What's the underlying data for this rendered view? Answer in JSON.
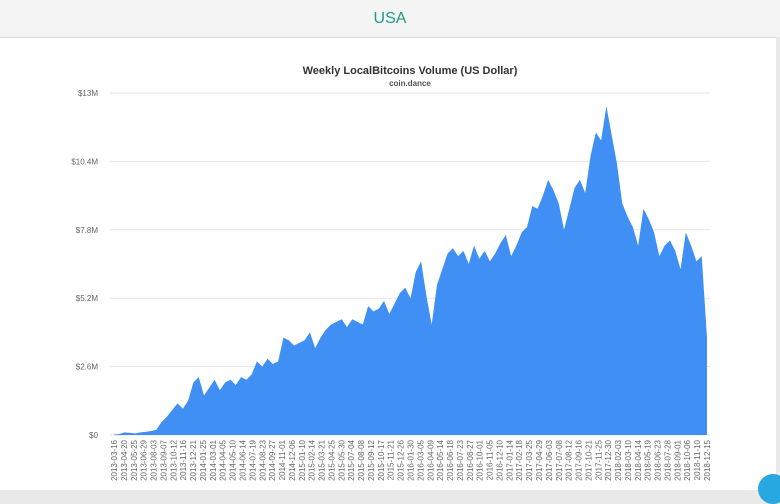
{
  "header": {
    "title": "USA"
  },
  "colors": {
    "header_title": "#1a9c86",
    "area_fill": "#3f8ff5",
    "grid": "#e6e6e6"
  },
  "chart_data": {
    "type": "area",
    "title": "Weekly LocalBitcoins Volume (US Dollar)",
    "subtitle": "coin.dance",
    "xlabel": "",
    "ylabel": "",
    "ylim": [
      0,
      13000000
    ],
    "yticks": [
      {
        "value": 0,
        "label": "$0"
      },
      {
        "value": 2600000,
        "label": "$2.6M"
      },
      {
        "value": 5200000,
        "label": "$5.2M"
      },
      {
        "value": 7800000,
        "label": "$7.8M"
      },
      {
        "value": 10400000,
        "label": "$10.4M"
      },
      {
        "value": 13000000,
        "label": "$13M"
      }
    ],
    "grid": true,
    "legend": "none",
    "xtick_labels": [
      "2013-03-16",
      "2013-04-20",
      "2013-05-25",
      "2013-06-29",
      "2013-08-03",
      "2013-09-07",
      "2013-10-12",
      "2013-11-16",
      "2013-12-21",
      "2014-01-25",
      "2014-03-01",
      "2014-04-05",
      "2014-05-10",
      "2014-06-14",
      "2014-07-19",
      "2014-08-23",
      "2014-09-27",
      "2014-11-01",
      "2014-12-06",
      "2015-01-10",
      "2015-02-14",
      "2015-03-21",
      "2015-04-25",
      "2015-05-30",
      "2015-07-04",
      "2015-08-08",
      "2015-09-12",
      "2015-10-17",
      "2015-11-21",
      "2015-12-26",
      "2016-01-30",
      "2016-03-05",
      "2016-04-09",
      "2016-05-14",
      "2016-06-18",
      "2016-07-23",
      "2016-08-27",
      "2016-10-01",
      "2016-11-05",
      "2016-12-10",
      "2017-01-14",
      "2017-02-18",
      "2017-03-25",
      "2017-04-29",
      "2017-06-03",
      "2017-07-08",
      "2017-08-12",
      "2017-09-16",
      "2017-10-21",
      "2017-11-25",
      "2017-12-30",
      "2018-02-03",
      "2018-03-10",
      "2018-04-14",
      "2018-05-19",
      "2018-06-23",
      "2018-07-28",
      "2018-09-01",
      "2018-10-06",
      "2018-11-10",
      "2018-12-15"
    ],
    "series": [
      {
        "name": "",
        "values": [
          20000,
          40000,
          100000,
          80000,
          60000,
          100000,
          120000,
          150000,
          200000,
          500000,
          700000,
          950000,
          1200000,
          1000000,
          1300000,
          2000000,
          2200000,
          1500000,
          1800000,
          2100000,
          1700000,
          2000000,
          2100000,
          1900000,
          2200000,
          2100000,
          2300000,
          2800000,
          2600000,
          2900000,
          2700000,
          2800000,
          3700000,
          3600000,
          3400000,
          3500000,
          3600000,
          3900000,
          3300000,
          3700000,
          4000000,
          4200000,
          4300000,
          4400000,
          4100000,
          4400000,
          4300000,
          4200000,
          4900000,
          4700000,
          4800000,
          5100000,
          4600000,
          5000000,
          5400000,
          5600000,
          5200000,
          6200000,
          6600000,
          5300000,
          4200000,
          5700000,
          6300000,
          6900000,
          7100000,
          6800000,
          7000000,
          6500000,
          7200000,
          6700000,
          7000000,
          6600000,
          6900000,
          7300000,
          7600000,
          6800000,
          7200000,
          7700000,
          7900000,
          8700000,
          8600000,
          9100000,
          9700000,
          9300000,
          8800000,
          7800000,
          8600000,
          9400000,
          9700000,
          9200000,
          10600000,
          11500000,
          11200000,
          12500000,
          11400000,
          10300000,
          8800000,
          8300000,
          7900000,
          7200000,
          8600000,
          8200000,
          7700000,
          6800000,
          7200000,
          7400000,
          7000000,
          6300000,
          7700000,
          7200000,
          6600000,
          6800000,
          3700000
        ]
      }
    ]
  }
}
